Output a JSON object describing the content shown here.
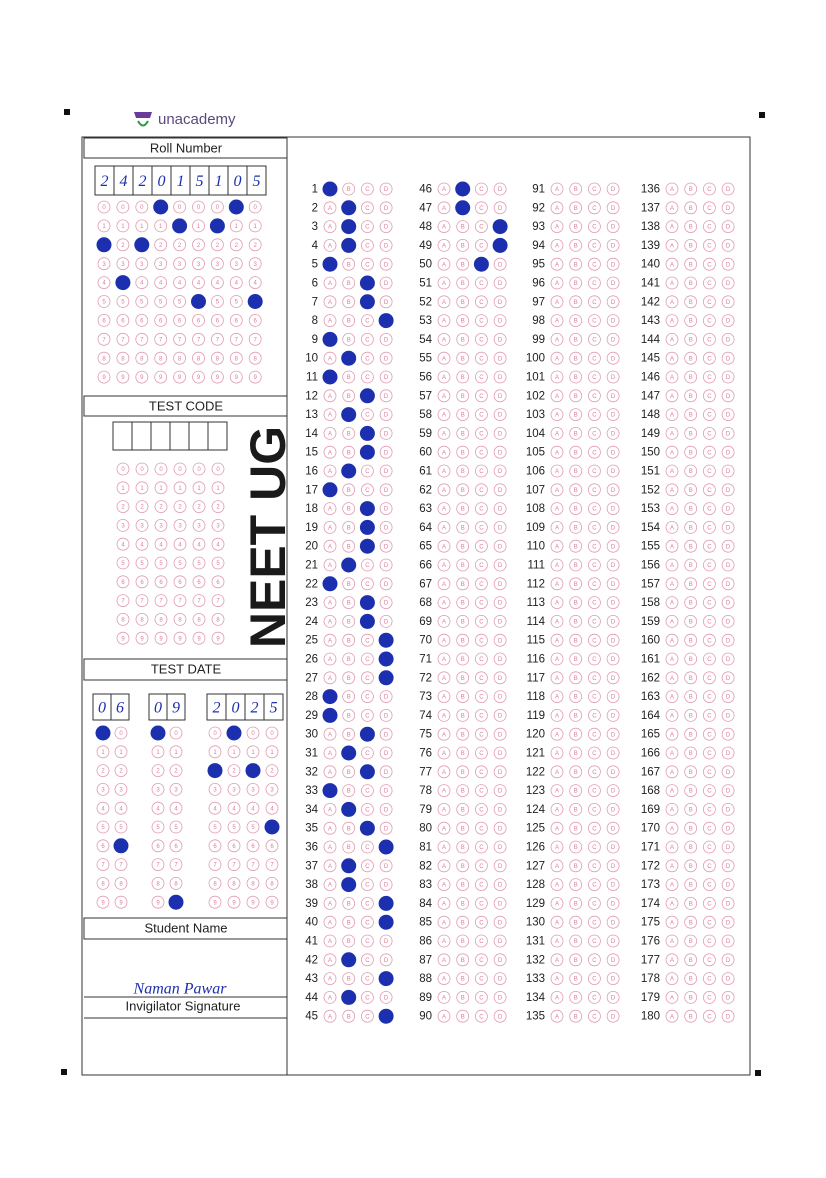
{
  "header": {
    "brand": "unacademy"
  },
  "roll_number": {
    "title": "Roll Number",
    "digits": [
      "2",
      "4",
      "2",
      "0",
      "1",
      "5",
      "1",
      "0",
      "5"
    ]
  },
  "test_code": {
    "title": "TEST CODE",
    "exam": "NEET UG"
  },
  "test_date": {
    "title": "TEST DATE",
    "day": [
      "0",
      "6"
    ],
    "month": [
      "0",
      "9"
    ],
    "year": [
      "2",
      "0",
      "2",
      "5"
    ]
  },
  "student_name": {
    "title": "Student Name",
    "signature": "Naman Pawar"
  },
  "invigilator": {
    "title": "Invigilator Signature"
  },
  "bubble_digits": [
    "0",
    "1",
    "2",
    "3",
    "4",
    "5",
    "6",
    "7",
    "8",
    "9"
  ],
  "options": [
    "A",
    "B",
    "C",
    "D"
  ],
  "questions": [
    1,
    2,
    3,
    4,
    5,
    6,
    7,
    8,
    9,
    10,
    11,
    12,
    13,
    14,
    15,
    16,
    17,
    18,
    19,
    20,
    21,
    22,
    23,
    24,
    25,
    26,
    27,
    28,
    29,
    30,
    31,
    32,
    33,
    34,
    35,
    36,
    37,
    38,
    39,
    40,
    41,
    42,
    43,
    44,
    45,
    46,
    47,
    48,
    49,
    50,
    51,
    52,
    53,
    54,
    55,
    56,
    57,
    58,
    59,
    60,
    61,
    62,
    63,
    64,
    65,
    66,
    67,
    68,
    69,
    70,
    71,
    72,
    73,
    74,
    75,
    76,
    77,
    78,
    79,
    80,
    81,
    82,
    83,
    84,
    85,
    86,
    87,
    88,
    89,
    90,
    91,
    92,
    93,
    94,
    95,
    96,
    97,
    98,
    99,
    100,
    101,
    102,
    103,
    104,
    105,
    106,
    107,
    108,
    109,
    110,
    111,
    112,
    113,
    114,
    115,
    116,
    117,
    118,
    119,
    120,
    121,
    122,
    123,
    124,
    125,
    126,
    127,
    128,
    129,
    130,
    131,
    132,
    133,
    134,
    135,
    136,
    137,
    138,
    139,
    140,
    141,
    142,
    143,
    144,
    145,
    146,
    147,
    148,
    149,
    150,
    151,
    152,
    153,
    154,
    155,
    156,
    157,
    158,
    159,
    160,
    161,
    162,
    163,
    164,
    165,
    166,
    167,
    168,
    169,
    170,
    171,
    172,
    173,
    174,
    175,
    176,
    177,
    178,
    179,
    180
  ],
  "answers": [
    "A",
    "B",
    "B",
    "B",
    "A",
    "C",
    "C",
    "D",
    "A",
    "B",
    "A",
    "C",
    "B",
    "C",
    "C",
    "B",
    "A",
    "C",
    "C",
    "C",
    "B",
    "A",
    "C",
    "C",
    "D",
    "D",
    "D",
    "A",
    "A",
    "C",
    "B",
    "C",
    "A",
    "B",
    "C",
    "D",
    "B",
    "B",
    "D",
    "D",
    null,
    "B",
    "D",
    "B",
    "D",
    "B",
    "B",
    "D",
    "D",
    "C"
  ]
}
